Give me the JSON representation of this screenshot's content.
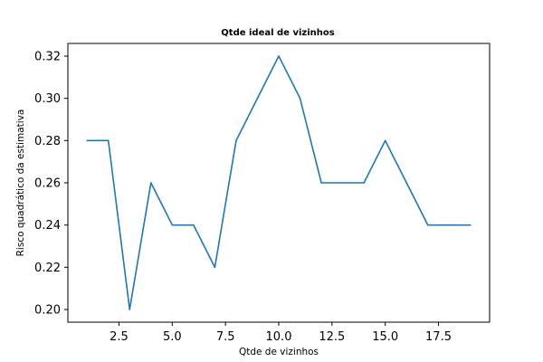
{
  "chart_data": {
    "type": "line",
    "title": "Qtde ideal de vizinhos",
    "xlabel": "Qtde de vizinhos",
    "ylabel": "Risco quadrático da estimativa",
    "xlim": [
      0.1,
      19.9
    ],
    "ylim": [
      0.194,
      0.326
    ],
    "xticks": [
      2.5,
      5.0,
      7.5,
      10.0,
      12.5,
      15.0,
      17.5
    ],
    "xtick_labels": [
      "2.5",
      "5.0",
      "7.5",
      "10.0",
      "12.5",
      "15.0",
      "17.5"
    ],
    "yticks": [
      0.2,
      0.22,
      0.24,
      0.26,
      0.28,
      0.3,
      0.32
    ],
    "ytick_labels": [
      "0.20",
      "0.22",
      "0.24",
      "0.26",
      "0.28",
      "0.30",
      "0.32"
    ],
    "grid": false,
    "series": [
      {
        "color": "#1f77b4",
        "x": [
          1,
          2,
          3,
          4,
          5,
          6,
          7,
          8,
          9,
          10,
          11,
          12,
          13,
          14,
          15,
          16,
          17,
          18,
          19
        ],
        "y": [
          0.28,
          0.28,
          0.2,
          0.26,
          0.24,
          0.24,
          0.22,
          0.28,
          0.3,
          0.32,
          0.3,
          0.26,
          0.26,
          0.26,
          0.28,
          0.26,
          0.24,
          0.24,
          0.24
        ]
      }
    ]
  }
}
